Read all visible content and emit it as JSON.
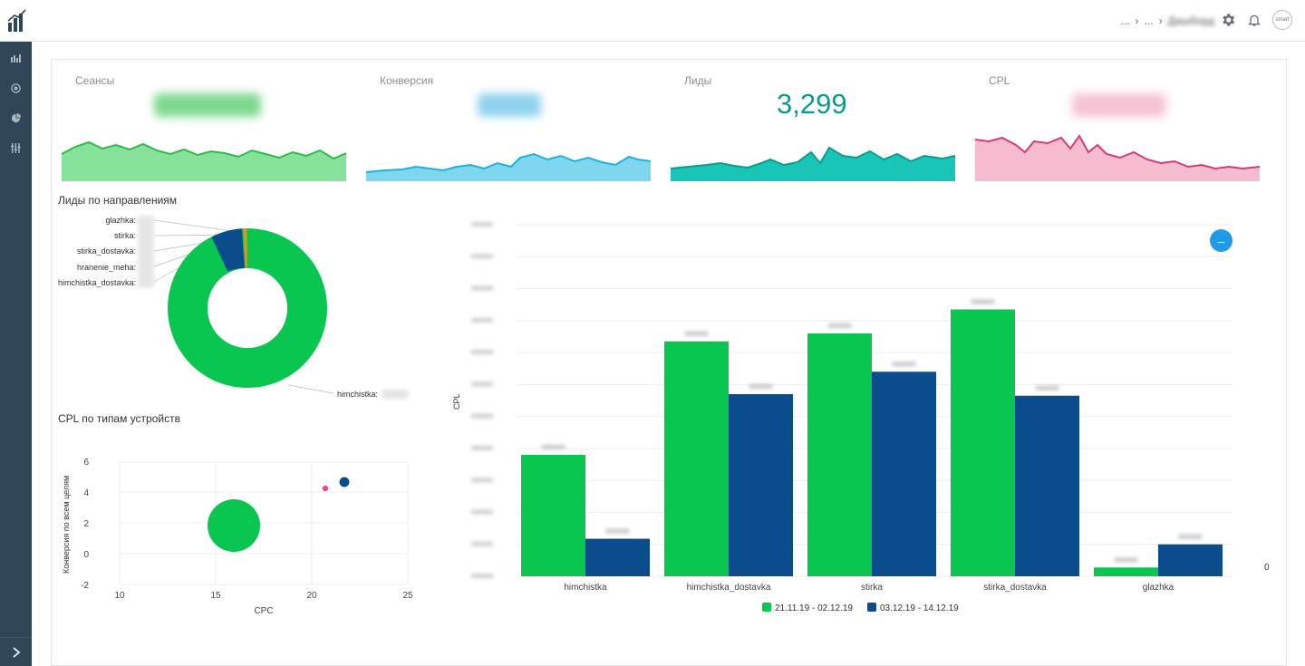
{
  "header": {
    "breadcrumb": [
      "...",
      "...",
      "Дашборд"
    ],
    "logo_icon": "bar-chart-logo-icon",
    "avatar_text": "smart"
  },
  "sidebar": {
    "items": [
      {
        "icon": "bar-chart-icon"
      },
      {
        "icon": "target-icon"
      },
      {
        "icon": "pie-chart-icon"
      },
      {
        "icon": "filter-sliders-icon"
      }
    ],
    "expand_icon": "chevron-right-icon"
  },
  "kpis": [
    {
      "label": "Сеансы",
      "value": "",
      "color": "#2dbb4a",
      "fill": "#86e19a"
    },
    {
      "label": "Конверсия",
      "value": "",
      "color": "#1fb1db",
      "fill": "#7fd6ef"
    },
    {
      "label": "Лиды",
      "value": "3,299",
      "color": "#0a9c8e",
      "fill": "#19c5b6"
    },
    {
      "label": "CPL",
      "value": "",
      "color": "#d63a79",
      "fill": "#f5bcd0"
    }
  ],
  "donut": {
    "title": "Лиды по направлениям",
    "labels": [
      "glazhka:",
      "stirka:",
      "stirka_dostavka:",
      "hranenie_meha:",
      "himchistka_dostavka:",
      "himchistka:"
    ],
    "colors": {
      "main": "#08c650",
      "dark": "#0b4d8c",
      "orange": "#f28b1e"
    }
  },
  "scatter": {
    "title": "CPL по типам устройств",
    "xlabel": "CPC",
    "ylabel": "Конверсия по всем целям",
    "x_ticks": [
      "10",
      "15",
      "20",
      "25"
    ],
    "y_ticks": [
      "6",
      "4",
      "2",
      "0",
      "-2"
    ]
  },
  "chart_data": {
    "type": "bar",
    "categories": [
      "himchistka",
      "himchistka_dostavka",
      "stirka",
      "stirka_dostavka",
      "glazhka"
    ],
    "ylabel": "CPL",
    "series": [
      {
        "name": "21.11.19 - 02.12.19",
        "color": "#08c650",
        "values": [
          7600,
          14700,
          15200,
          16700,
          550
        ]
      },
      {
        "name": "03.12.19 - 14.12.19",
        "color": "#0b4d8c",
        "values": [
          2350,
          11400,
          12800,
          11300,
          2000
        ]
      }
    ],
    "ylim": [
      0,
      22000
    ],
    "secondary_axis_label": "0"
  }
}
